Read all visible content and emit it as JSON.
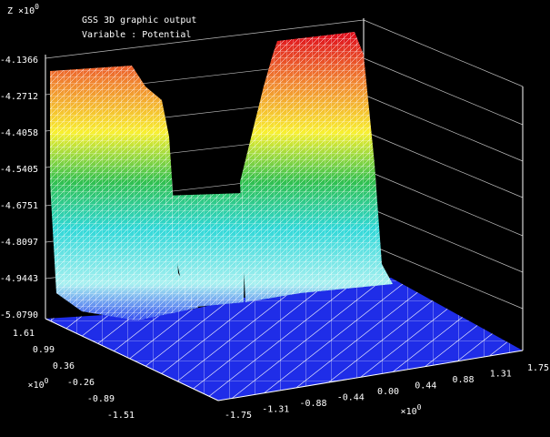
{
  "header": {
    "corner_label": "Z ×10",
    "corner_exponent": "0",
    "title": "GSS 3D graphic output",
    "subtitle": "Variable : Potential"
  },
  "z_axis": {
    "ticks": [
      "-4.1366",
      "-4.2712",
      "-4.4058",
      "-4.5405",
      "-4.6751",
      "-4.8097",
      "-4.9443",
      "-5.0790"
    ]
  },
  "y_axis": {
    "unit": "×10",
    "exponent": "0",
    "ticks": [
      "1.61",
      "0.99",
      "0.36",
      "-0.26",
      "-0.89",
      "-1.51"
    ]
  },
  "x_axis": {
    "unit": "×10",
    "exponent": "0",
    "ticks": [
      "-1.75",
      "-1.31",
      "-0.88",
      "-0.44",
      "0.00",
      "0.44",
      "0.88",
      "1.31",
      "1.75"
    ]
  }
}
